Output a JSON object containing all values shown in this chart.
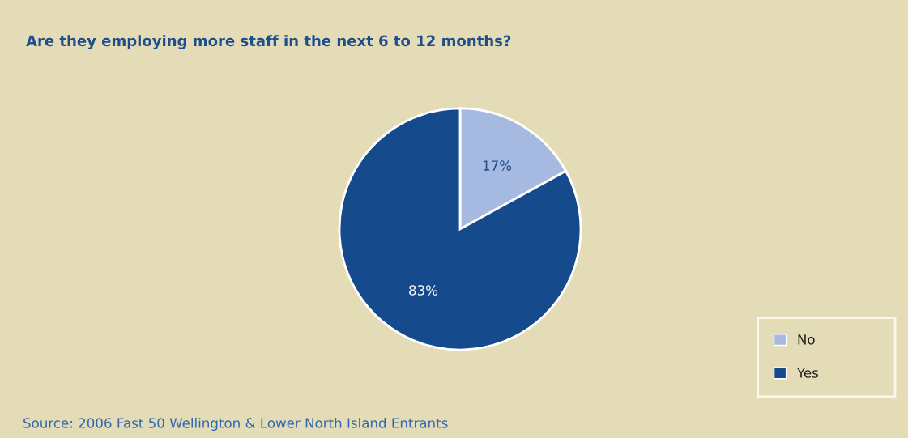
{
  "chart_data": {
    "type": "pie",
    "title": "Are they employing more staff in the next 6 to 12 months?",
    "categories": [
      "No",
      "Yes"
    ],
    "values": [
      17,
      83
    ],
    "value_labels": [
      "17%",
      "83%"
    ],
    "colors": [
      "#a6b9e0",
      "#154a8c"
    ],
    "legend": "bottom right",
    "annotations": [
      "Source: 2006 Fast 50 Wellington & Lower North Island Entrants"
    ]
  }
}
